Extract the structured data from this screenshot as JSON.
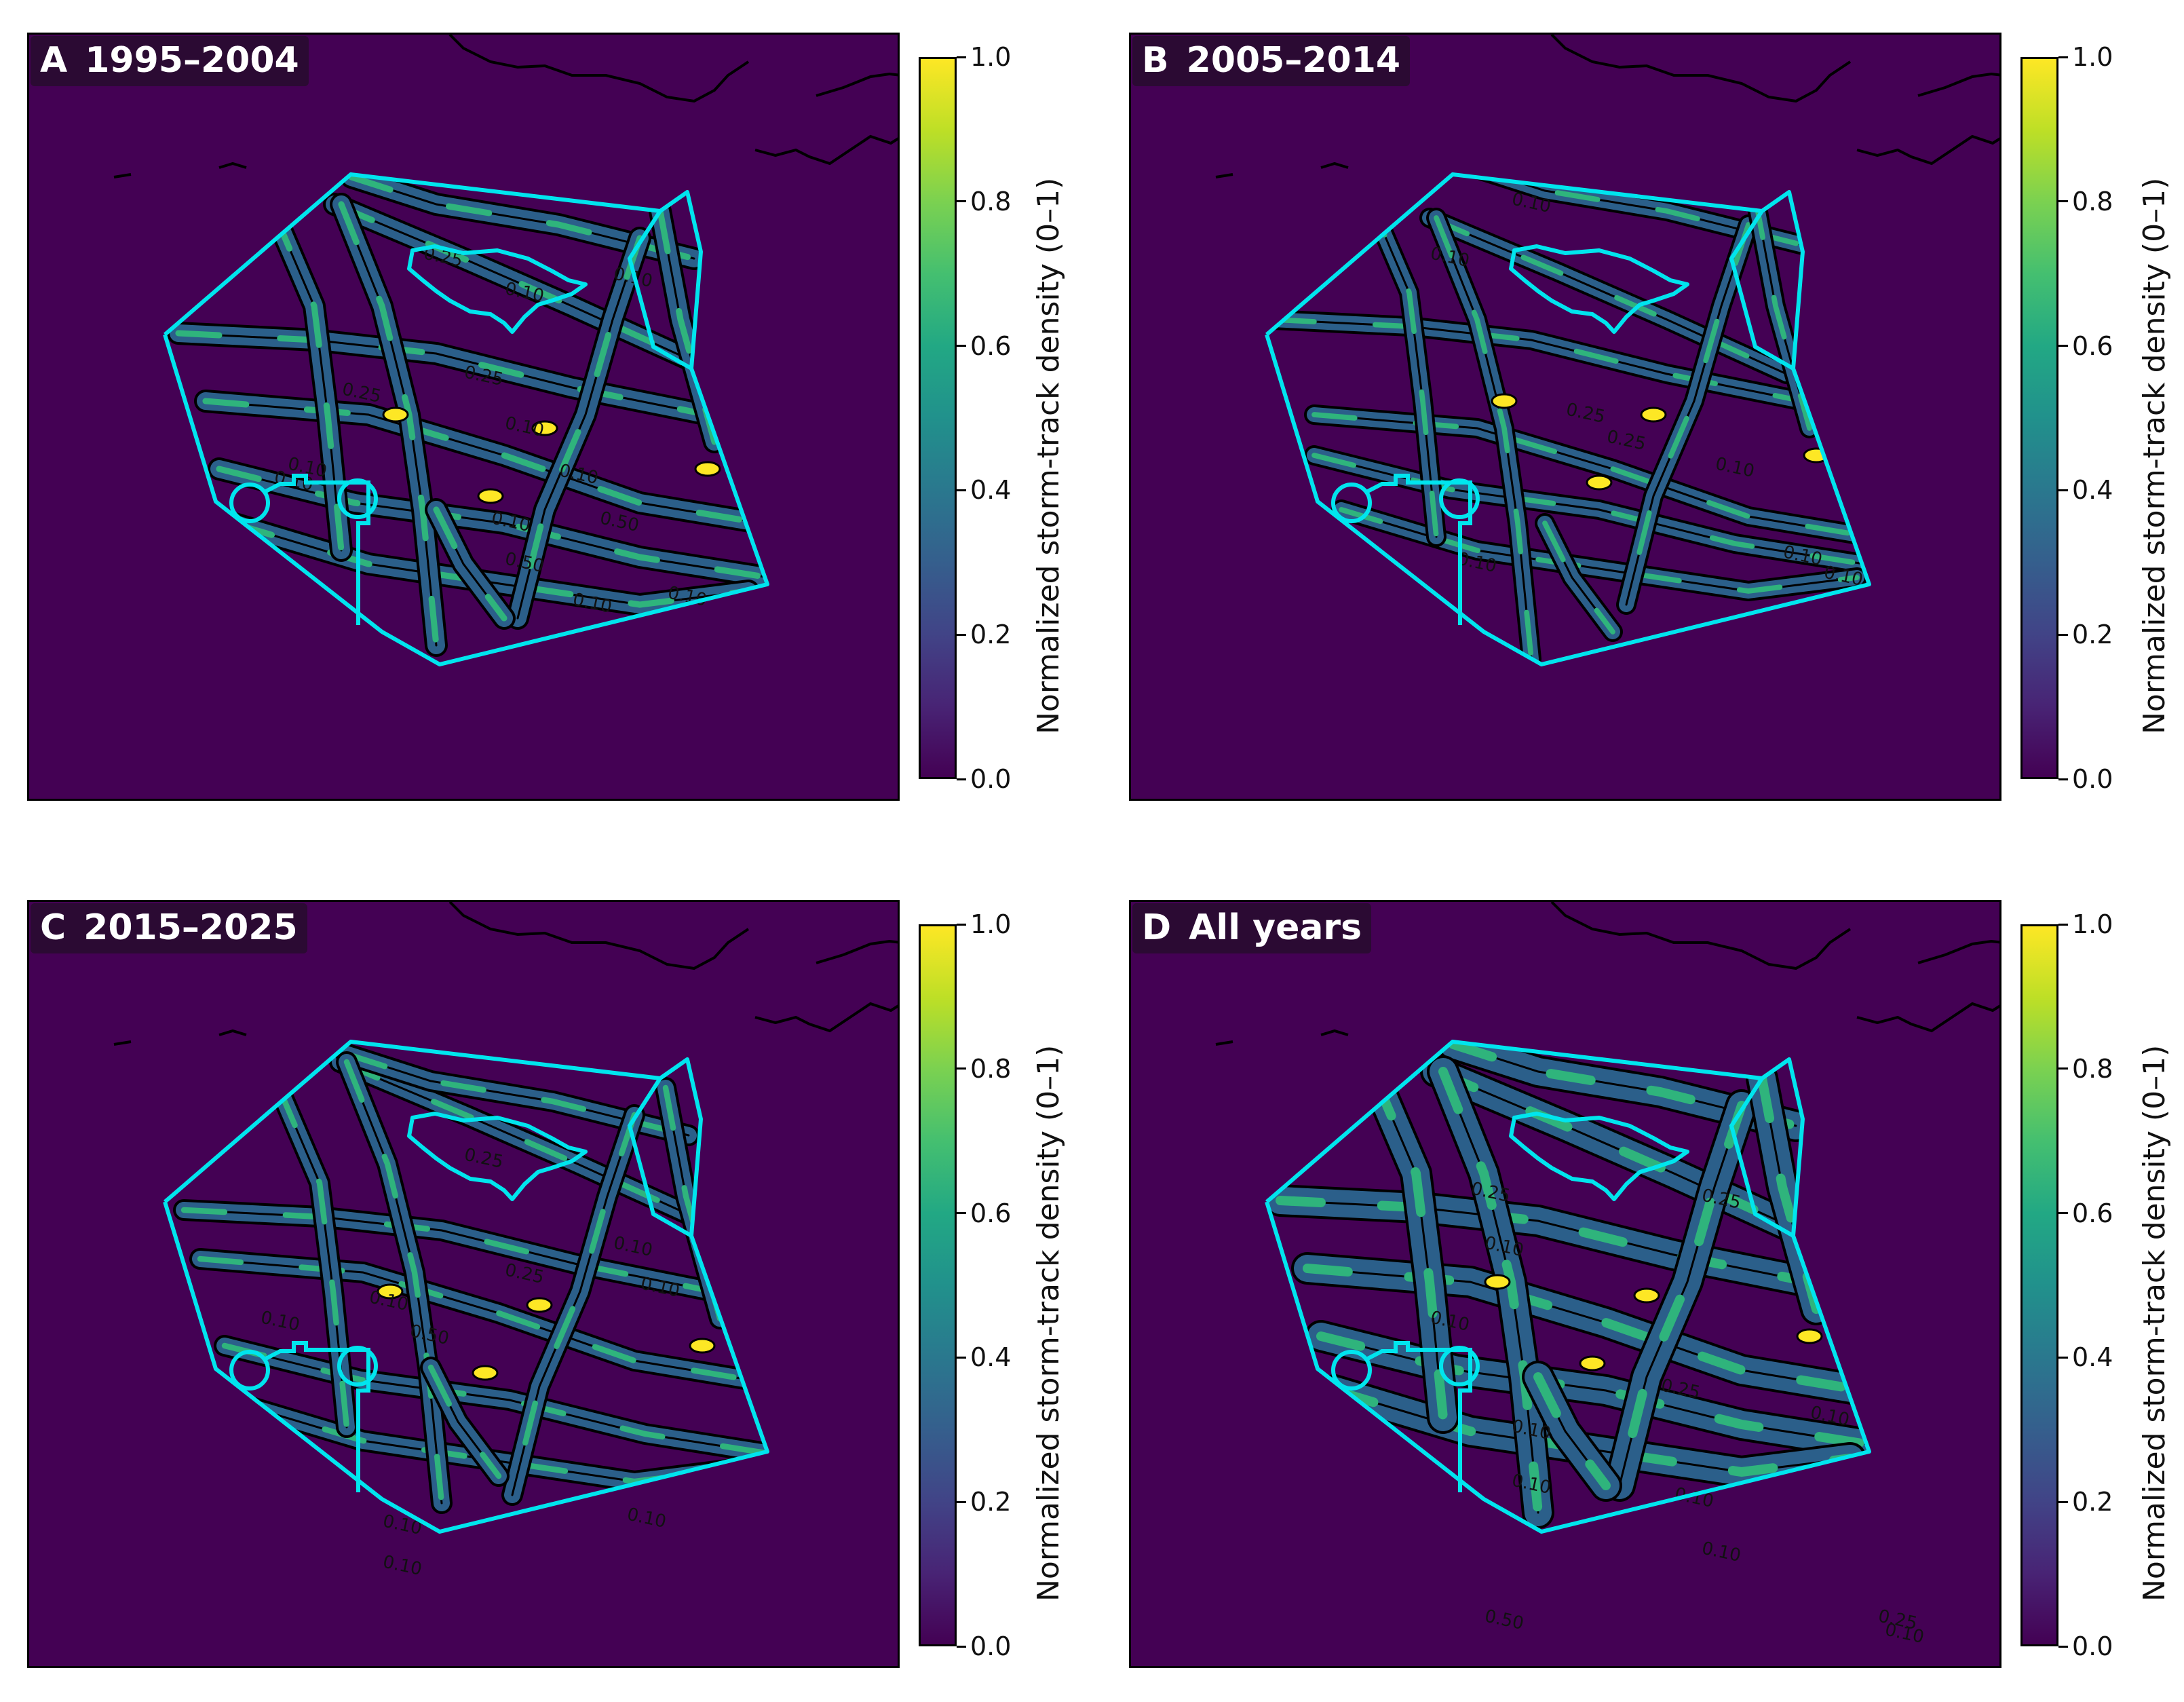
{
  "figure": {
    "panels": [
      {
        "letter": "A",
        "period": "1995–2004"
      },
      {
        "letter": "B",
        "period": "2005–2014"
      },
      {
        "letter": "C",
        "period": "2015–2025"
      },
      {
        "letter": "D",
        "period": "All years"
      }
    ],
    "colorbar": {
      "label": "Normalized storm-track density (0–1)",
      "ticks": [
        "0.0",
        "0.2",
        "0.4",
        "0.6",
        "0.8",
        "1.0"
      ],
      "colormap": "viridis",
      "range": [
        0,
        1
      ]
    },
    "contour_labels": {
      "A": [
        "0.25",
        "0.10",
        "0.10",
        "0.25",
        "0.25",
        "0.10",
        "0.10",
        "0.10",
        "0.10",
        "0.10",
        "0.50",
        "0.50",
        "0.10",
        "0.10"
      ],
      "B": [
        "0.10",
        "0.10",
        "0.25",
        "0.25",
        "0.10",
        "0.10",
        "0.10",
        "0.10"
      ],
      "C": [
        "0.25",
        "0.10",
        "0.10",
        "0.25",
        "0.10",
        "0.10",
        "0.10",
        "0.10",
        "0.50",
        "0.10"
      ],
      "D": [
        "0.25",
        "0.25",
        "0.10",
        "0.10",
        "0.10",
        "0.25",
        "0.10",
        "0.10",
        "0.10",
        "0.10",
        "0.50",
        "0.25",
        "0.10"
      ]
    },
    "colors": {
      "background": "#440154",
      "boundary": "#00e5ee",
      "contour": "#000000"
    }
  }
}
